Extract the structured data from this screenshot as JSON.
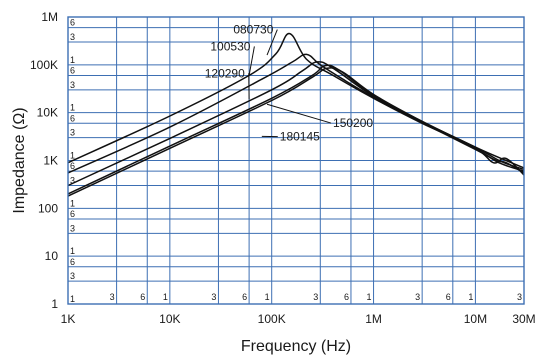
{
  "chart_data": {
    "type": "line",
    "x_scale": "log",
    "y_scale": "log",
    "xlabel": "Frequency (Hz)",
    "ylabel": "Impedance (Ω)",
    "xlim": [
      1000,
      30000000
    ],
    "ylim": [
      1,
      1000000
    ],
    "grid": true,
    "x_ticks": [
      {
        "value": 1000,
        "label": "1K"
      },
      {
        "value": 10000,
        "label": "10K"
      },
      {
        "value": 100000,
        "label": "100K"
      },
      {
        "value": 1000000,
        "label": "1M"
      },
      {
        "value": 10000000,
        "label": "10M"
      },
      {
        "value": 30000000,
        "label": "30M"
      }
    ],
    "y_ticks": [
      {
        "value": 1,
        "label": "1"
      },
      {
        "value": 10,
        "label": "10"
      },
      {
        "value": 100,
        "label": "100"
      },
      {
        "value": 1000,
        "label": "1K"
      },
      {
        "value": 10000,
        "label": "10K"
      },
      {
        "value": 100000,
        "label": "100K"
      },
      {
        "value": 1000000,
        "label": "1M"
      }
    ],
    "minor_multipliers": [
      "1",
      "3",
      "6"
    ],
    "series": [
      {
        "name": "080730",
        "x": [
          1000,
          10000,
          60000,
          110000,
          150000,
          220000,
          400000,
          1000000,
          3000000,
          10000000,
          15000000,
          20000000,
          30000000
        ],
        "y": [
          900,
          8500,
          60000,
          170000,
          450000,
          130000,
          60000,
          20000,
          6000,
          1800,
          900,
          1100,
          500
        ]
      },
      {
        "name": "100530",
        "x": [
          1000,
          10000,
          80000,
          160000,
          220000,
          300000,
          500000,
          1000000,
          3000000,
          10000000,
          16000000,
          20000000,
          30000000
        ],
        "y": [
          550,
          5000,
          50000,
          115000,
          165000,
          100000,
          50000,
          21000,
          6200,
          1700,
          1000,
          900,
          550
        ]
      },
      {
        "name": "120290",
        "x": [
          1000,
          10000,
          100000,
          200000,
          280000,
          400000,
          1000000,
          3000000,
          10000000,
          17000000,
          30000000
        ],
        "y": [
          300,
          2900,
          30000,
          75000,
          115000,
          85000,
          22000,
          6300,
          1800,
          900,
          600
        ]
      },
      {
        "name": "150200",
        "x": [
          1000,
          10000,
          100000,
          250000,
          330000,
          450000,
          1000000,
          3000000,
          10000000,
          18000000,
          30000000
        ],
        "y": [
          200,
          2000,
          20000,
          60000,
          95000,
          80000,
          23000,
          6500,
          1900,
          950,
          650
        ]
      },
      {
        "name": "180145",
        "x": [
          1000,
          10000,
          100000,
          250000,
          350000,
          500000,
          1000000,
          3000000,
          10000000,
          20000000,
          30000000
        ],
        "y": [
          180,
          1800,
          18000,
          55000,
          85000,
          70000,
          24000,
          6600,
          1900,
          1000,
          700
        ]
      }
    ],
    "annotations": [
      {
        "text": "080730",
        "x": 42000,
        "y": 450000,
        "arrow_x": 90000,
        "arrow_y": 160000
      },
      {
        "text": "100530",
        "x": 25000,
        "y": 200000,
        "arrow_x": 60000,
        "arrow_y": 60000
      },
      {
        "text": "120290",
        "x": 22000,
        "y": 55000,
        "arrow_x": 60000,
        "arrow_y": 19000
      },
      {
        "text": "150200",
        "x": 400000,
        "y": 5000,
        "arrow_x": 90000,
        "arrow_y": 15000
      },
      {
        "text": "180145",
        "x": 120000,
        "y": 2600,
        "arrow_x": 80000,
        "arrow_y": 3200
      }
    ]
  }
}
